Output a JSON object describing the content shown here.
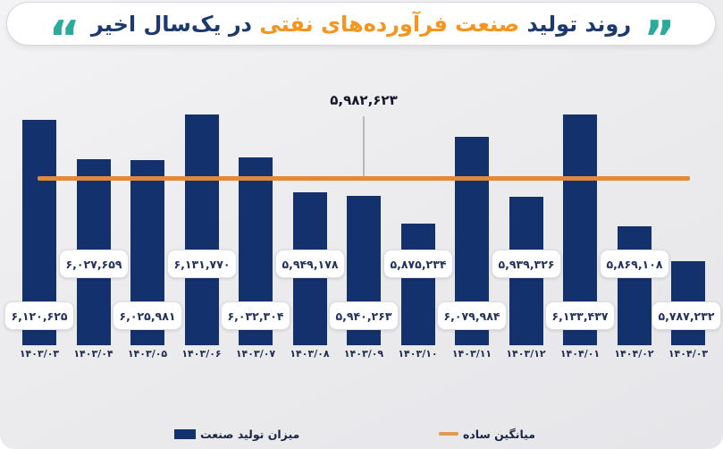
{
  "header": {
    "title_part1": "روند تولید",
    "title_part2": "صنعت فرآورده‌های نفتی",
    "title_part3": "در یک‌سال اخیر",
    "quote_open": "”",
    "quote_close": "“",
    "quote_color": "#2bab9b",
    "navy": "#1c3a6e",
    "orange": "#f7941d"
  },
  "annotation": {
    "average_label": "۵,۹۸۲,۶۲۳"
  },
  "legend": {
    "bars_label": "میزان تولید صنعت",
    "line_label": "میانگین ساده"
  },
  "chart_data": {
    "type": "bar",
    "title": "روند تولید صنعت فرآورده‌های نفتی در یک‌سال اخیر",
    "categories": [
      "۱۴۰۳/۰۳",
      "۱۴۰۳/۰۴",
      "۱۴۰۳/۰۵",
      "۱۴۰۳/۰۶",
      "۱۴۰۳/۰۷",
      "۱۴۰۳/۰۸",
      "۱۴۰۳/۰۹",
      "۱۴۰۳/۱۰",
      "۱۴۰۳/۱۱",
      "۱۴۰۳/۱۲",
      "۱۴۰۴/۰۱",
      "۱۴۰۴/۰۲",
      "۱۴۰۴/۰۳"
    ],
    "values": [
      6120625,
      6027659,
      6025981,
      6131770,
      6032304,
      5949178,
      5940263,
      5875234,
      6079984,
      5939326,
      6133437,
      5869108,
      5787232
    ],
    "value_labels": [
      "۶,۱۲۰,۶۲۵",
      "۶,۰۲۷,۶۵۹",
      "۶,۰۲۵,۹۸۱",
      "۶,۱۳۱,۷۷۰",
      "۶,۰۳۲,۳۰۴",
      "۵,۹۴۹,۱۷۸",
      "۵,۹۴۰,۲۶۳",
      "۵,۸۷۵,۲۳۴",
      "۶,۰۷۹,۹۸۴",
      "۵,۹۳۹,۳۲۶",
      "۶,۱۳۳,۴۳۷",
      "۵,۸۶۹,۱۰۸",
      "۵,۷۸۷,۲۳۲"
    ],
    "average": {
      "value": 5982623,
      "label": "۵,۹۸۲,۶۲۳"
    },
    "series_name": "میزان تولید صنعت",
    "average_name": "میانگین ساده",
    "xlabel": "",
    "ylabel": "",
    "ylim": [
      5590000,
      6200000
    ],
    "grid": false,
    "legend_position": "bottom",
    "bar_color": "#12316d",
    "average_line_color": "#e08a3c"
  }
}
